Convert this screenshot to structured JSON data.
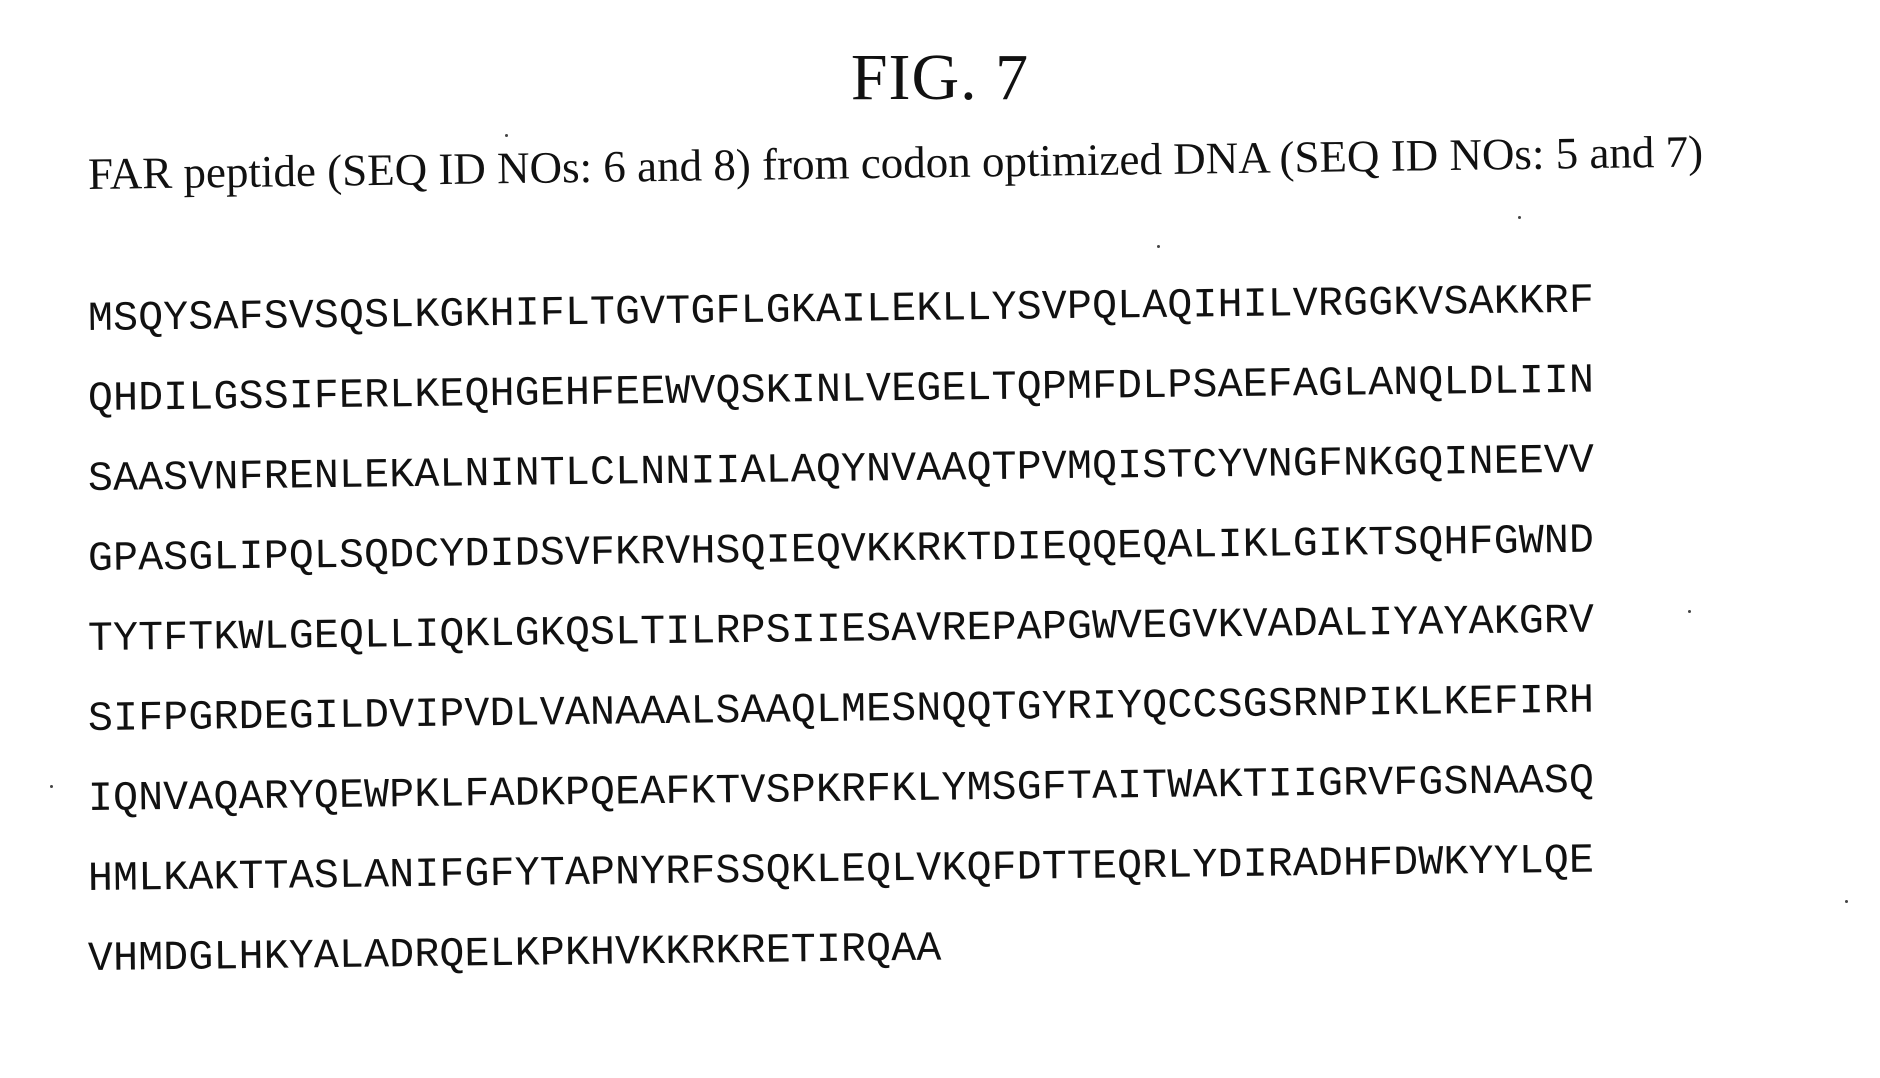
{
  "figure": {
    "title": "FIG. 7",
    "subtitle": "FAR peptide (SEQ ID NOs: 6 and 8) from codon optimized DNA (SEQ ID NOs: 5 and 7)"
  },
  "sequence_lines": [
    "MSQYSAFSVSQSLKGKHIFLTGVTGFLGKAILEKLLYSVPQLAQIHILVRGGKVSAKKRF",
    "QHDILGSSIFERLKEQHGEHFEEWVQSKINLVEGELTQPMFDLPSAEFAGLANQLDLIIN",
    "SAASVNFRENLEKALNINTLCLNNIIALAQYNVAAQTPVMQISTCYVNGFNKGQINEEVV",
    "GPASGLIPQLSQDCYDIDSVFKRVHSQIEQVKKRKTDIEQQEQALIKLGIKTSQHFGWND",
    "TYTFTKWLGEQLLIQKLGKQSLTILRPSIIESAVREPAPGWVEGVKVADALIYAYAKGRV",
    "SIFPGRDEGILDVIPVDLVANAAALSAAQLMESNQQTGYRIYQCCSGSRNPIKLKEFIRH",
    "IQNVAQARYQEWPKLFADKPQEAFKTVSPKRFKLYMSGFTAITWAKTIIGRVFGSNAASQ",
    "HMLKAKTTASLANIFGFYTAPNYRFSSQKLEQLVKQFDTTEQRLYDIRADHFDWKYYLQE",
    "VHMDGLHKYALADRQELKPKHVKKRKRETIRQAA"
  ]
}
